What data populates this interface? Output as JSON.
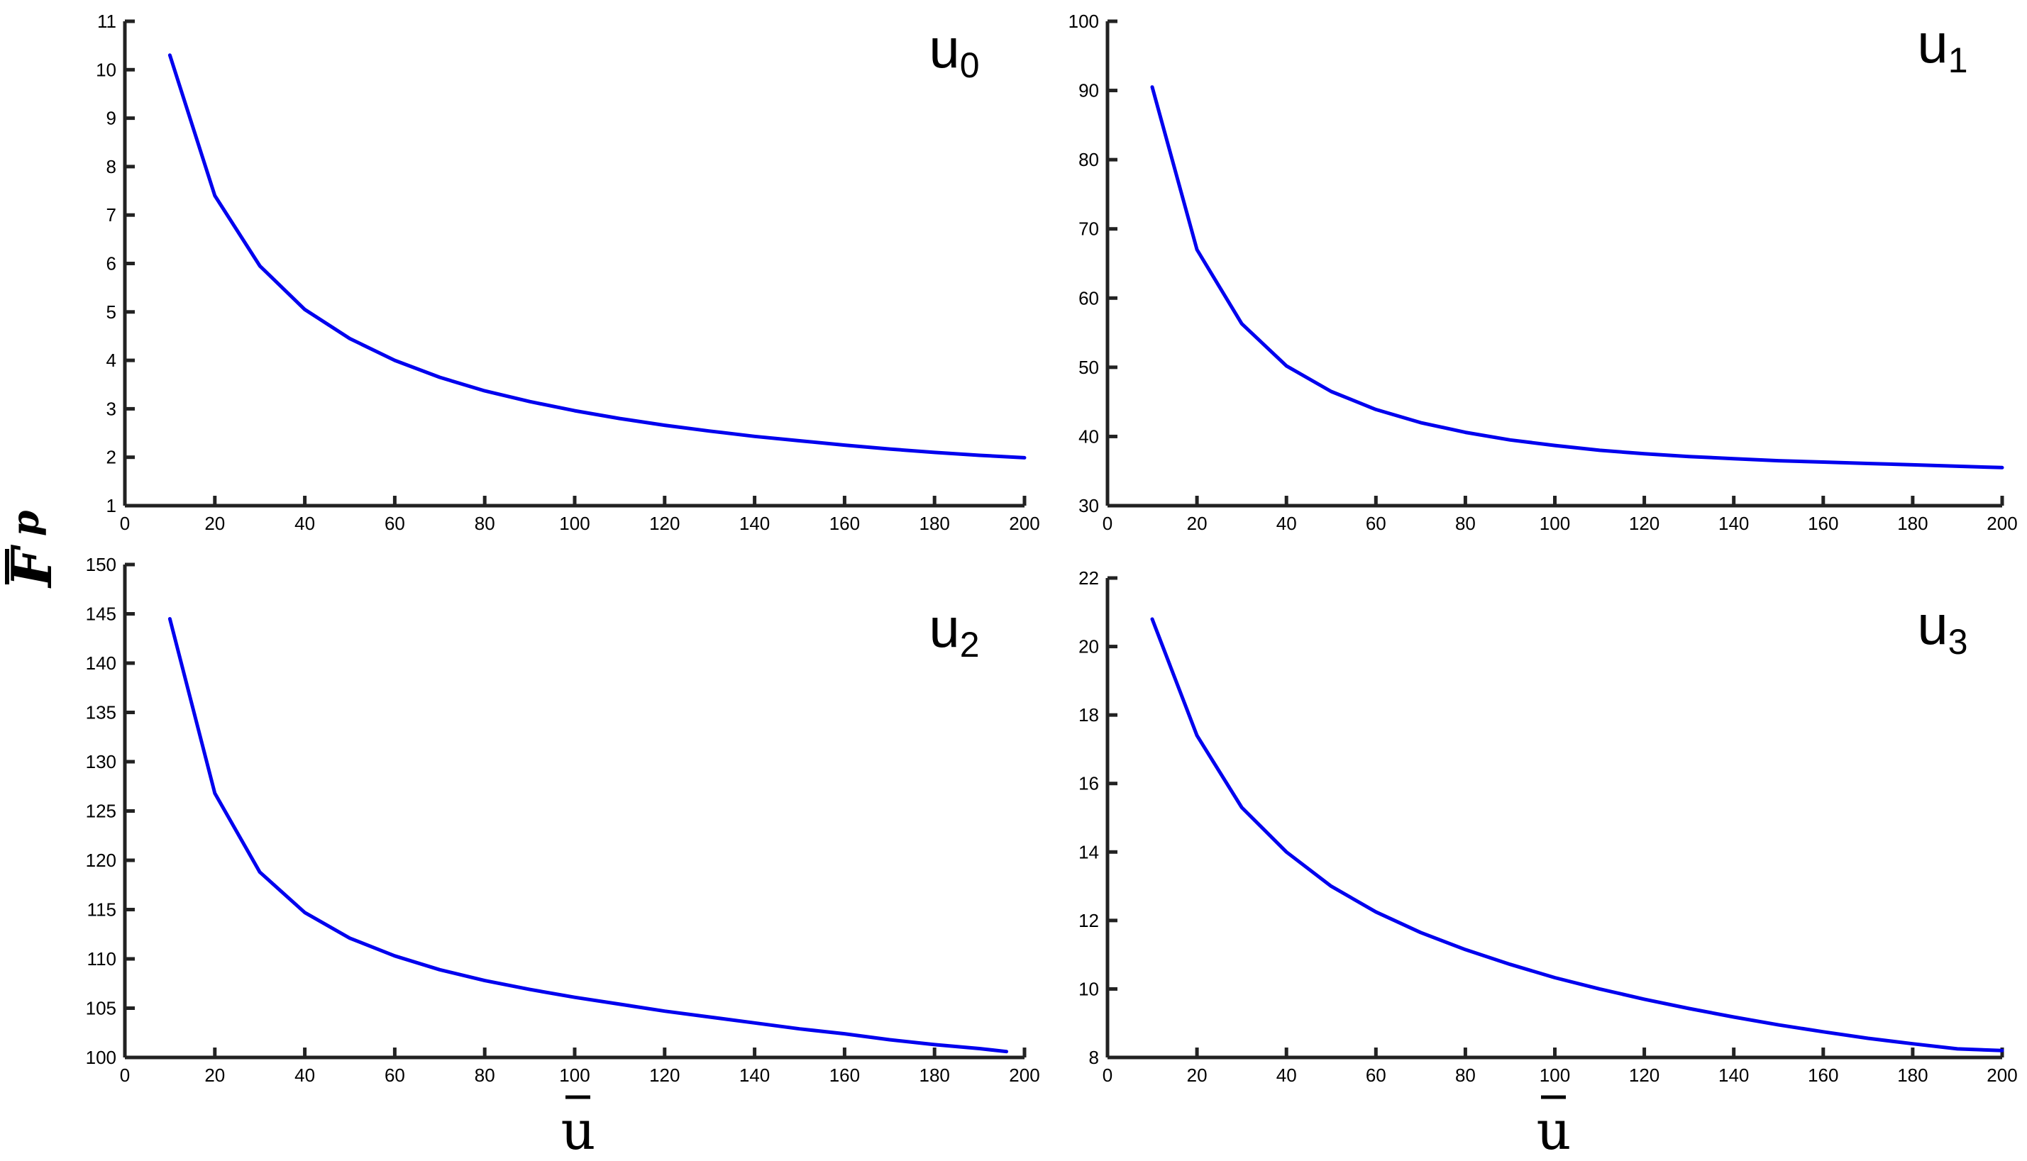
{
  "figure": {
    "ylabel_main": "F",
    "ylabel_sub": "p",
    "xlabel": "u"
  },
  "chart_data": [
    {
      "type": "line",
      "panel_label": "u",
      "panel_subscript": "0",
      "x": [
        10,
        20,
        30,
        40,
        50,
        60,
        70,
        80,
        90,
        100,
        110,
        120,
        130,
        140,
        150,
        160,
        170,
        180,
        190,
        200
      ],
      "series": [
        {
          "color": "#0000ee",
          "values": [
            10.3,
            7.4,
            5.95,
            5.05,
            4.45,
            4.0,
            3.65,
            3.37,
            3.15,
            2.96,
            2.8,
            2.66,
            2.54,
            2.43,
            2.34,
            2.25,
            2.17,
            2.1,
            2.04,
            1.99
          ]
        }
      ],
      "xlim": [
        0,
        200
      ],
      "ylim": [
        1,
        11
      ],
      "xticks": [
        0,
        20,
        40,
        60,
        80,
        100,
        120,
        140,
        160,
        180,
        200
      ],
      "yticks": [
        1,
        2,
        3,
        4,
        5,
        6,
        7,
        8,
        9,
        10,
        11
      ],
      "grid": false
    },
    {
      "type": "line",
      "panel_label": "u",
      "panel_subscript": "1",
      "x": [
        10,
        20,
        30,
        40,
        50,
        60,
        70,
        80,
        90,
        100,
        110,
        120,
        130,
        140,
        150,
        160,
        170,
        180,
        190,
        200
      ],
      "series": [
        {
          "color": "#0000ee",
          "values": [
            90.5,
            67.0,
            56.3,
            50.2,
            46.5,
            43.9,
            42.0,
            40.6,
            39.5,
            38.7,
            38.0,
            37.5,
            37.1,
            36.8,
            36.5,
            36.3,
            36.1,
            35.9,
            35.7,
            35.5
          ]
        }
      ],
      "xlim": [
        0,
        200
      ],
      "ylim": [
        30,
        100
      ],
      "xticks": [
        0,
        20,
        40,
        60,
        80,
        100,
        120,
        140,
        160,
        180,
        200
      ],
      "yticks": [
        30,
        40,
        50,
        60,
        70,
        80,
        90,
        100
      ],
      "grid": false
    },
    {
      "type": "line",
      "panel_label": "u",
      "panel_subscript": "2",
      "x": [
        10,
        20,
        30,
        40,
        50,
        60,
        70,
        80,
        90,
        100,
        110,
        120,
        130,
        140,
        150,
        160,
        170,
        180,
        190,
        196
      ],
      "series": [
        {
          "color": "#0000ee",
          "values": [
            144.5,
            126.8,
            118.8,
            114.7,
            112.1,
            110.3,
            108.9,
            107.8,
            106.9,
            106.1,
            105.4,
            104.7,
            104.1,
            103.5,
            102.9,
            102.4,
            101.8,
            101.3,
            100.9,
            100.6
          ]
        }
      ],
      "xlim": [
        0,
        200
      ],
      "ylim": [
        100,
        150
      ],
      "xticks": [
        0,
        20,
        40,
        60,
        80,
        100,
        120,
        140,
        160,
        180,
        200
      ],
      "yticks": [
        100,
        105,
        110,
        115,
        120,
        125,
        130,
        135,
        140,
        145,
        150
      ],
      "grid": false
    },
    {
      "type": "line",
      "panel_label": "u",
      "panel_subscript": "3",
      "x": [
        10,
        20,
        30,
        40,
        50,
        60,
        70,
        80,
        90,
        100,
        110,
        120,
        130,
        140,
        150,
        160,
        170,
        180,
        190,
        200
      ],
      "series": [
        {
          "color": "#0000ee",
          "values": [
            20.8,
            17.4,
            15.3,
            14.0,
            13.0,
            12.25,
            11.65,
            11.15,
            10.72,
            10.33,
            10.0,
            9.7,
            9.43,
            9.18,
            8.95,
            8.75,
            8.56,
            8.4,
            8.25,
            8.2
          ]
        }
      ],
      "xlim": [
        0,
        200
      ],
      "ylim": [
        8,
        22
      ],
      "xticks": [
        0,
        20,
        40,
        60,
        80,
        100,
        120,
        140,
        160,
        180,
        200
      ],
      "yticks": [
        8,
        10,
        12,
        14,
        16,
        18,
        20,
        22
      ],
      "grid": false
    }
  ]
}
